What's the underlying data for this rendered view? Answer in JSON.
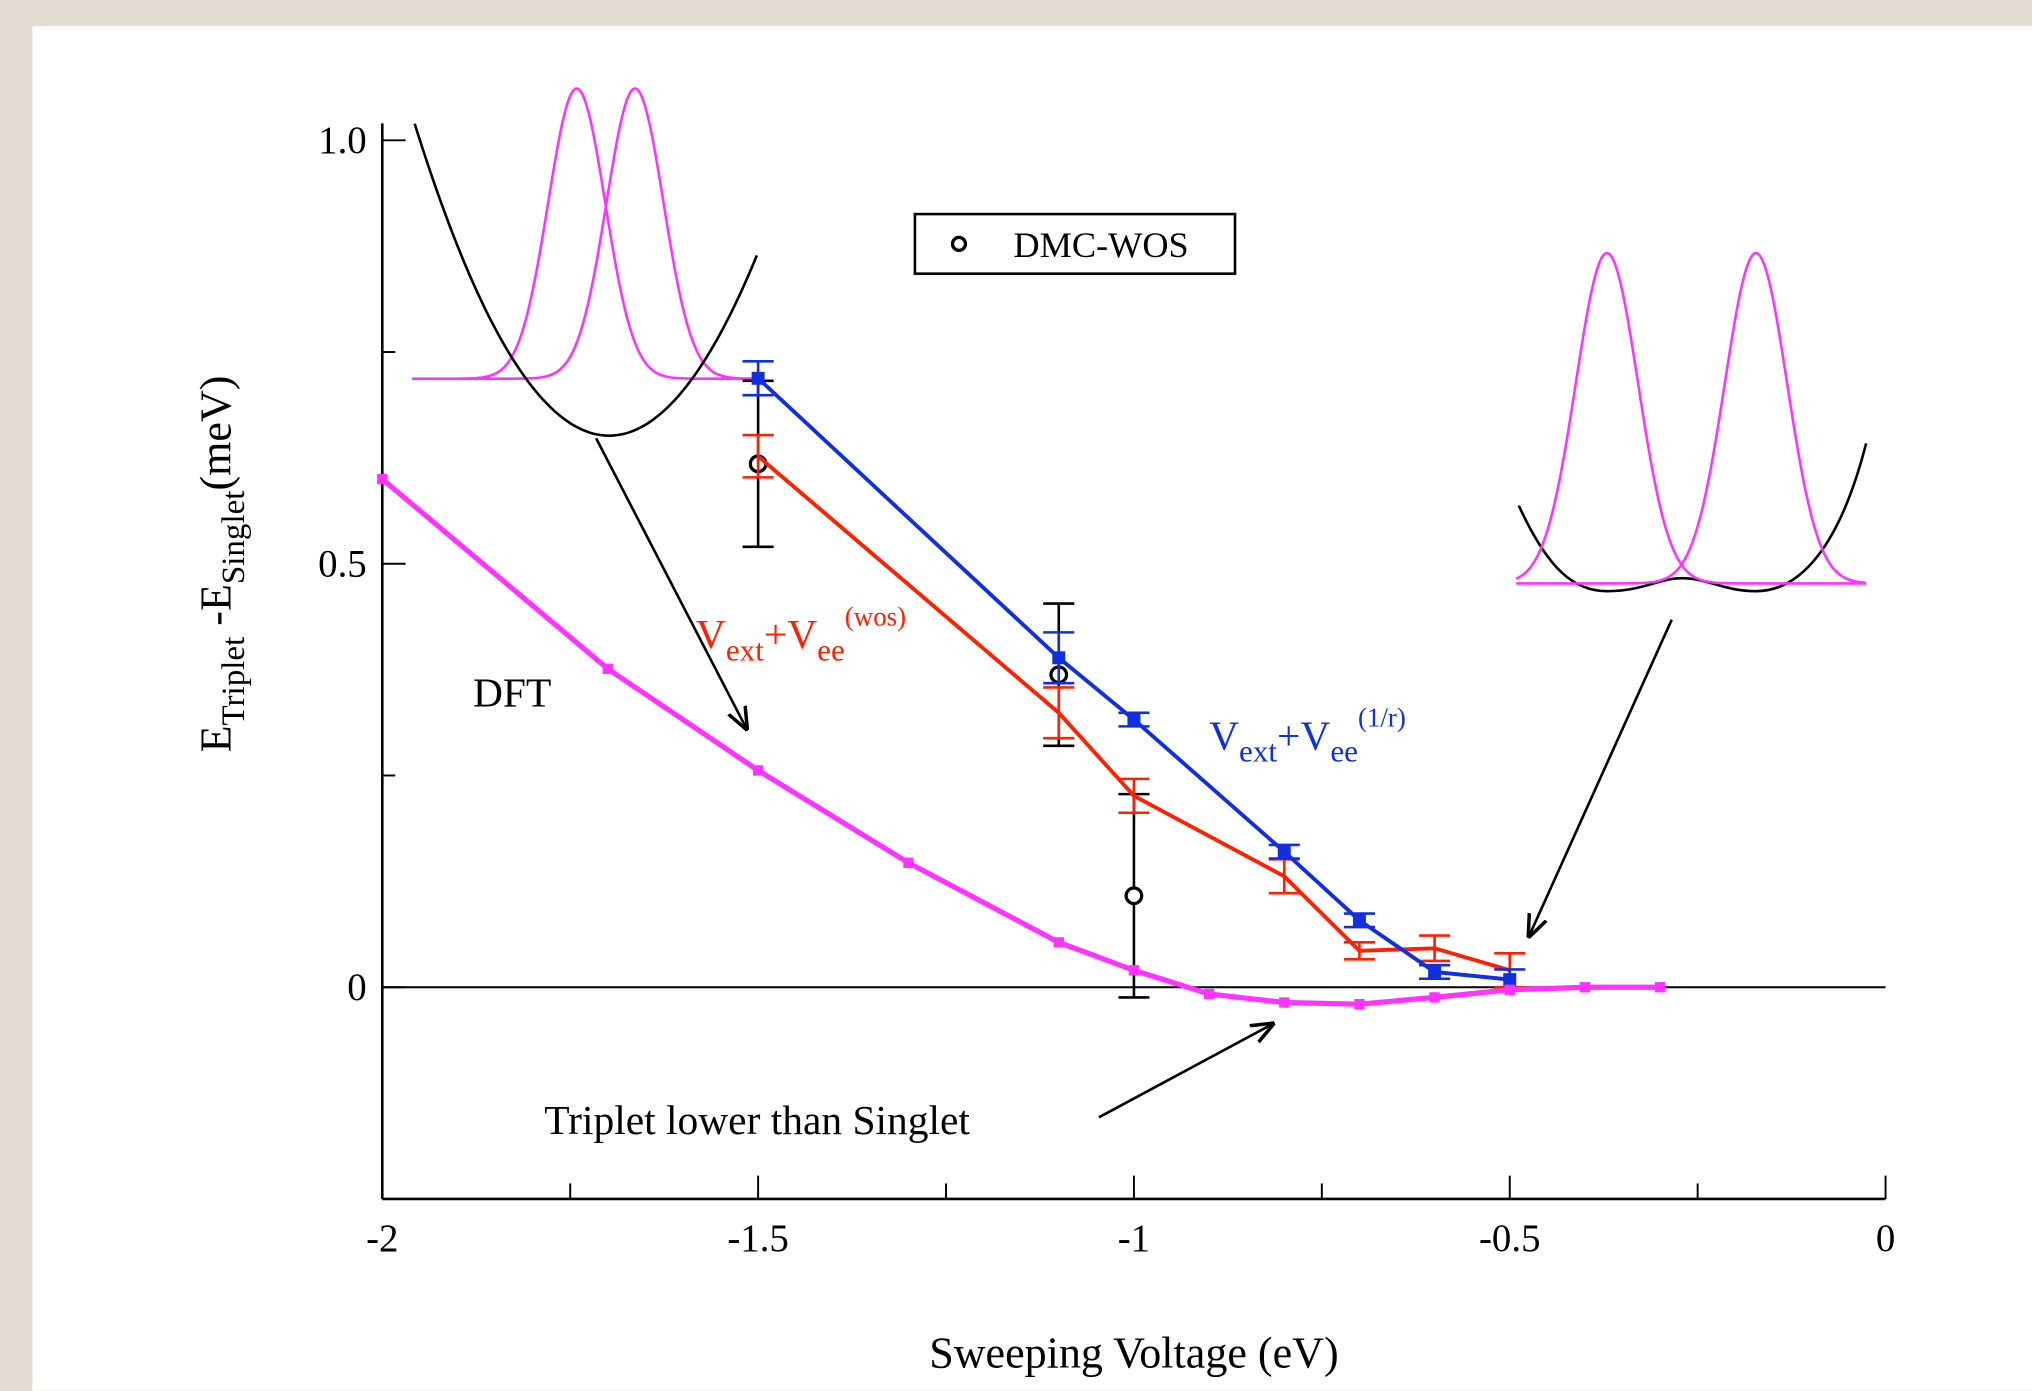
{
  "chart_data": {
    "type": "line",
    "xlabel": "Sweeping Voltage (eV)",
    "ylabel": {
      "base1": "E",
      "sub1": "Triplet",
      "base2": " -E",
      "sub2": "Singlet",
      "tail": "(meV)"
    },
    "xlim": [
      -2,
      0
    ],
    "ylim": [
      -0.25,
      1.02
    ],
    "xticks": [
      -2,
      -1.5,
      -1,
      -0.5,
      0
    ],
    "yticks": [
      0,
      0.5,
      {
        "value": 1,
        "label": "1.0"
      }
    ],
    "xminorticks": [
      -1.75,
      -1.25,
      -0.75,
      -0.25
    ],
    "yminorticks": [
      0.25,
      0.75
    ],
    "zero_line": true,
    "legend_position": "upper center",
    "series": [
      {
        "name": "DMC-WOS",
        "color": "#000000",
        "marker": "circle",
        "line": false,
        "x": [
          -1.5,
          -1.1,
          -1.0
        ],
        "values": [
          0.618,
          0.369,
          0.108
        ],
        "errors": [
          0.098,
          0.084,
          0.12
        ]
      },
      {
        "label": {
          "base1": "V",
          "sub1": "ext",
          "base2": "+V",
          "sub2": "ee",
          "sup": "(wos)"
        },
        "color": "#ff2000",
        "marker": "none",
        "line": true,
        "x": [
          -1.5,
          -1.1,
          -1.0,
          -0.8,
          -0.7,
          -0.6,
          -0.5
        ],
        "values": [
          0.627,
          0.324,
          0.226,
          0.131,
          0.043,
          0.046,
          0.02
        ],
        "errors": [
          0.025,
          0.03,
          0.02,
          0.02,
          0.01,
          0.015,
          0.02
        ]
      },
      {
        "label": {
          "base1": "V",
          "sub1": "ext",
          "base2": "+V",
          "sub2": "ee",
          "sup": "(1/r)"
        },
        "color": "#1030e0",
        "marker": "square",
        "line": true,
        "x": [
          -1.5,
          -1.1,
          -1.0,
          -0.8,
          -0.7,
          -0.6,
          -0.5
        ],
        "values": [
          0.719,
          0.389,
          0.316,
          0.16,
          0.079,
          0.018,
          0.009
        ],
        "errors": [
          0.02,
          0.03,
          0.008,
          0.008,
          0.008,
          0.008,
          0.012
        ]
      },
      {
        "label": "DFT",
        "color": "#ff33ff",
        "marker": "square",
        "line": true,
        "x": [
          -2,
          -1.7,
          -1.5,
          -1.3,
          -1.1,
          -1.0,
          -0.9,
          -0.8,
          -0.7,
          -0.6,
          -0.5,
          -0.4,
          -0.3
        ],
        "values": [
          0.6,
          0.376,
          0.256,
          0.147,
          0.053,
          0.02,
          -0.008,
          -0.018,
          -0.02,
          -0.012,
          -0.003,
          0,
          0
        ]
      }
    ],
    "annotations": [
      {
        "text": "Triplet lower than Singlet",
        "color": "#ff33ff"
      }
    ]
  }
}
